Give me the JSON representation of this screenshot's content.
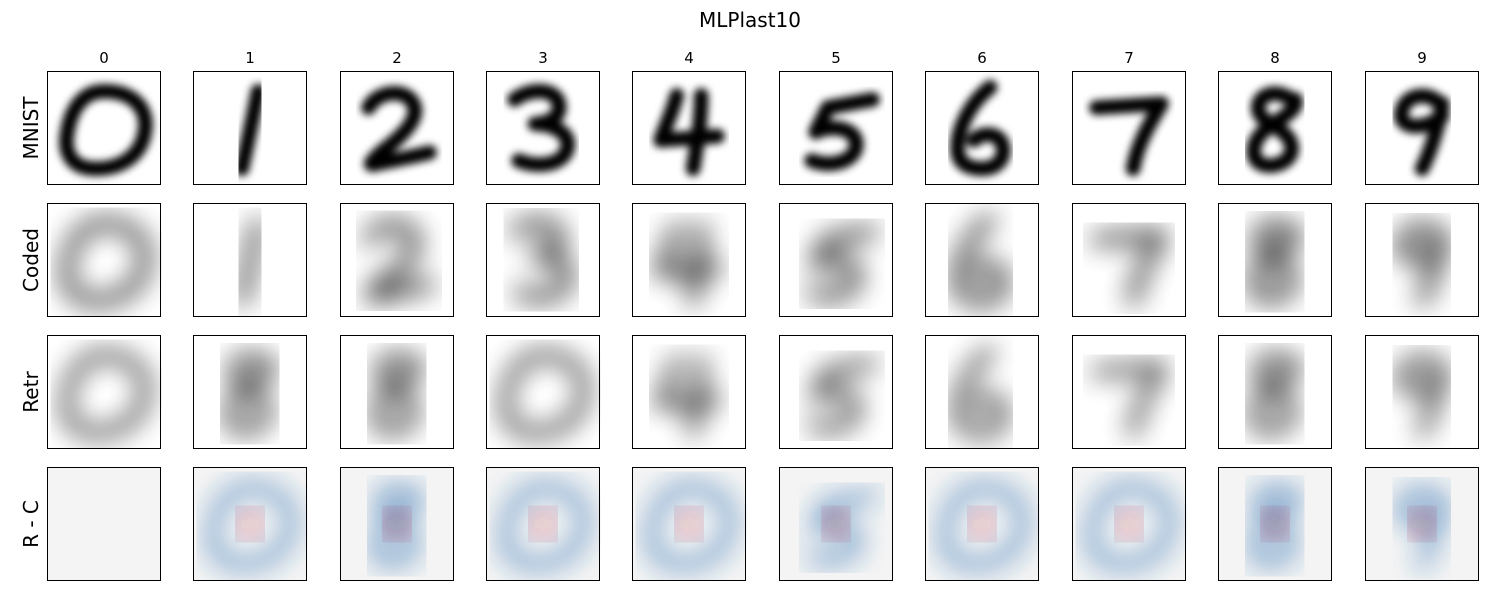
{
  "chart_data": {
    "type": "image-grid",
    "title": "MLPlast10",
    "columns": [
      "0",
      "1",
      "2",
      "3",
      "4",
      "5",
      "6",
      "7",
      "8",
      "9"
    ],
    "rows": [
      {
        "label": "MNIST",
        "colormap": "gray_r",
        "content": [
          "0",
          "1",
          "2",
          "3",
          "4",
          "5",
          "6",
          "7",
          "8",
          "9"
        ]
      },
      {
        "label": "Coded",
        "colormap": "gray_r",
        "content": [
          "0",
          "1",
          "2",
          "3",
          "4",
          "5",
          "6",
          "7",
          "8",
          "9"
        ]
      },
      {
        "label": "Retr",
        "colormap": "gray_r",
        "content": [
          "0",
          "8",
          "8",
          "0",
          "4",
          "5",
          "6",
          "7",
          "8",
          "9"
        ]
      },
      {
        "label": "R - C",
        "colormap": "RdBu",
        "content": [
          "",
          "0",
          "8",
          "0",
          "0",
          "5",
          "0",
          "0",
          "8",
          "9"
        ]
      }
    ],
    "colors": {
      "ink": "#000000",
      "diff_positive": "#b2182b",
      "diff_negative": "#2166ac",
      "diff_zero": "#f4f4f4"
    }
  }
}
